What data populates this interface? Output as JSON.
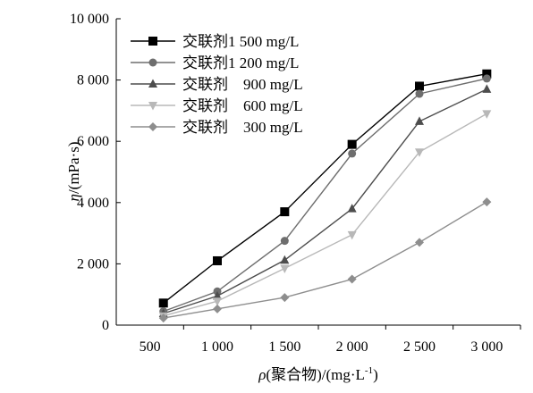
{
  "chart_data": {
    "type": "line",
    "title": "",
    "xlabel_parts": {
      "symbol": "ρ",
      "text": "(聚合物)/(mg·L",
      "sup": "-1",
      "close": ")"
    },
    "ylabel_parts": {
      "symbol": "η",
      "text": "/(mPa·s)"
    },
    "x_ticks": [
      500,
      1000,
      1500,
      2000,
      2500,
      3000
    ],
    "x_tick_labels": [
      "500",
      "1 000",
      "1 500",
      "2 000",
      "2 500",
      "3 000"
    ],
    "y_ticks": [
      0,
      2000,
      4000,
      6000,
      8000,
      10000
    ],
    "y_tick_labels": [
      "0",
      "2 000",
      "4 000",
      "6 000",
      "8 000",
      "10 000"
    ],
    "xlim": [
      250,
      3250
    ],
    "ylim": [
      0,
      10000
    ],
    "grid": false,
    "legend_position": "top-left",
    "series": [
      {
        "name": "交联剂1 500 mg/L",
        "marker": "square",
        "color": "#000000",
        "x": [
          600,
          1000,
          1500,
          2000,
          2500,
          3000
        ],
        "y": [
          720,
          2100,
          3700,
          5900,
          7800,
          8200
        ]
      },
      {
        "name": "交联剂1 200 mg/L",
        "marker": "circle",
        "color": "#6e6e6e",
        "x": [
          600,
          1000,
          1500,
          2000,
          2500,
          3000
        ],
        "y": [
          450,
          1100,
          2750,
          5600,
          7550,
          8050
        ]
      },
      {
        "name": "交联剂　900 mg/L",
        "marker": "triangle",
        "color": "#4d4d4d",
        "x": [
          600,
          1000,
          1500,
          2000,
          2500,
          3000
        ],
        "y": [
          380,
          950,
          2120,
          3800,
          6650,
          7700
        ]
      },
      {
        "name": "交联剂　600 mg/L",
        "marker": "tri-down",
        "color": "#b8b8b8",
        "x": [
          600,
          1000,
          1500,
          2000,
          2500,
          3000
        ],
        "y": [
          300,
          780,
          1850,
          2950,
          5650,
          6900
        ]
      },
      {
        "name": "交联剂　300 mg/L",
        "marker": "diamond",
        "color": "#8e8e8e",
        "x": [
          600,
          1000,
          1500,
          2000,
          2500,
          3000
        ],
        "y": [
          230,
          530,
          900,
          1500,
          2700,
          4020
        ]
      }
    ]
  }
}
